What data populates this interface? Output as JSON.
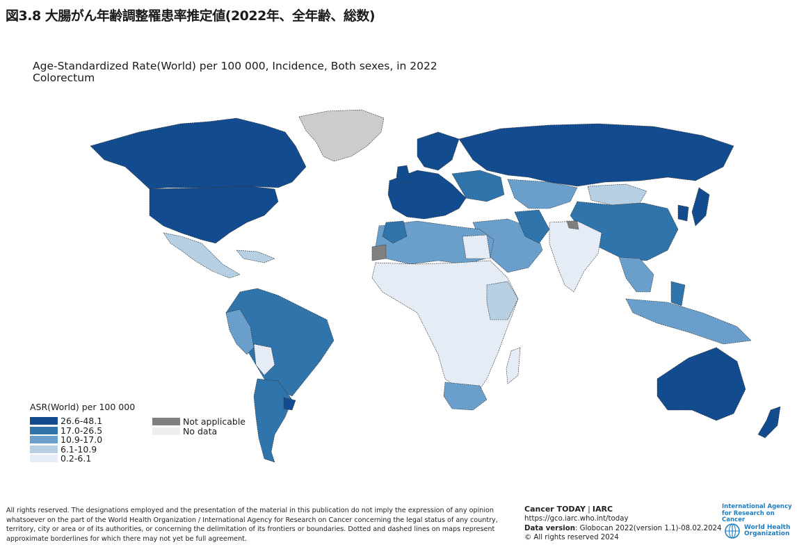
{
  "figure_title": "図3.8 大腸がん年齢調整罹患率推定値(2022年、全年齢、総数)",
  "map_title_line1": "Age-Standardized Rate(World) per 100 000, Incidence, Both sexes, in 2022",
  "map_title_line2": "Colorectum",
  "legend": {
    "title": "ASR(World) per 100 000",
    "items": [
      {
        "label": "26.6-48.1",
        "color": "#134c8e"
      },
      {
        "label": "17.0-26.5",
        "color": "#2f74ab"
      },
      {
        "label": "10.9-17.0",
        "color": "#6a9fcb"
      },
      {
        "label": "6.1-10.9",
        "color": "#b6cfe2"
      },
      {
        "label": "0.2-6.1",
        "color": "#e6ecf5"
      }
    ],
    "extra": [
      {
        "label": "Not applicable",
        "color": "#7f7f7f"
      },
      {
        "label": "No data",
        "color": "#eeeeee"
      }
    ]
  },
  "disclaimer": "All rights reserved. The designations employed and the presentation of the material in this publication do not imply the expression of any opinion whatsoever on the part of the World Health Organization / International Agency for Research on Cancer concerning the legal status of any country, territory, city or area or of its authorities, or concerning the delimitation of its frontiers or boundaries. Dotted and dashed lines on maps represent approximate borderlines for which there may not yet be full agreement.",
  "source": {
    "brand": "Cancer TODAY",
    "separator": "|",
    "org": "IARC",
    "url": "https://gco.iarc.who.int/today",
    "version_label": "Data version",
    "version_value": ": Globocan 2022(version 1.1)-08.02.2024",
    "copyright": "© All rights reserved 2024"
  },
  "logos": {
    "iarc_line1": "International Agency",
    "iarc_line2": "for Research on Cancer",
    "who_line1": "World Health",
    "who_line2": "Organization"
  },
  "colors": {
    "land_none": "#cccccc",
    "not_applicable": "#7f7f7f"
  }
}
